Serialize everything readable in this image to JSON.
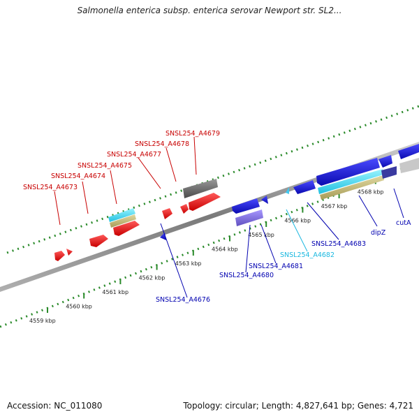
{
  "title": "Salmonella enterica subsp. enterica serovar Newport str. SL2...",
  "accession": "Accession: NC_011080",
  "summary": "Topology: circular; Length: 4,827,641 bp; Genes: 4,721",
  "kbp_labels": [
    "4559 kbp",
    "4560 kbp",
    "4561 kbp",
    "4562 kbp",
    "4563 kbp",
    "4564 kbp",
    "4565 kbp",
    "4566 kbp",
    "4567 kbp",
    "4568 kbp"
  ],
  "gene_labels": {
    "a4673": "SNSL254_A4673",
    "a4674": "SNSL254_A4674",
    "a4675": "SNSL254_A4675",
    "a4677": "SNSL254_A4677",
    "a4678": "SNSL254_A4678",
    "a4679": "SNSL254_A4679",
    "a4676": "SNSL254_A4676",
    "a4680": "SNSL254_A4680",
    "a4681": "SNSL254_A4681",
    "a4682": "SNSL254_A4682",
    "a4683": "SNSL254_A4683",
    "dipZ": "dipZ",
    "cutA": "cutA"
  },
  "colors": {
    "forward_gene": "#e8141c",
    "reverse_gene": "#1a1ad6",
    "highlight": "#3ad0e8",
    "label_forward": "#c80000",
    "label_reverse": "#0000b0",
    "label_highlight": "#1ab8e0",
    "tick": "#2a8a2a",
    "backbone": "#8c8c8c"
  }
}
